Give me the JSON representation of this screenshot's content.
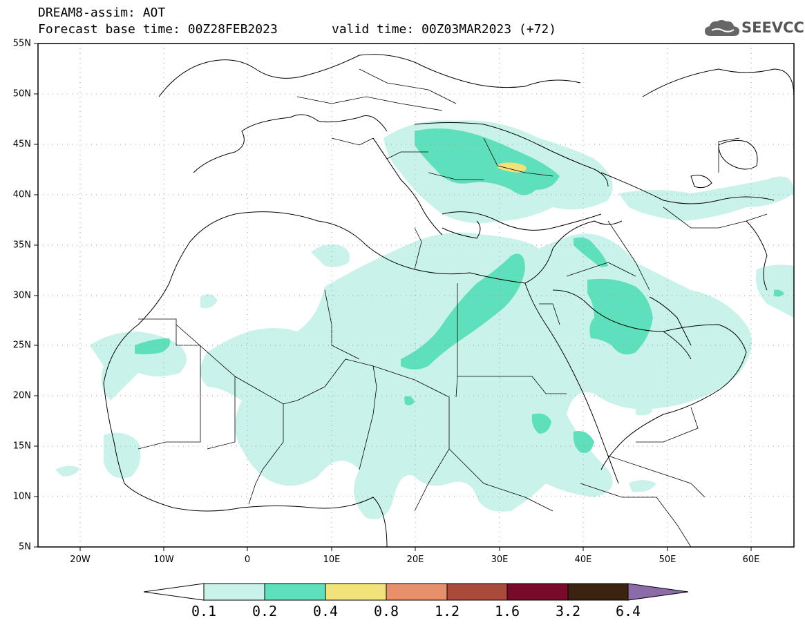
{
  "header": {
    "title": "DREAM8-assim: AOT",
    "base_time": "Forecast base time: 00Z28FEB2023",
    "valid_time": "valid time: 00Z03MAR2023 (+72)",
    "logo_text": "SEEVCCC"
  },
  "map": {
    "lon_range": [
      -25,
      65
    ],
    "lat_range": [
      5,
      55
    ],
    "lat_ticks": [
      "55N",
      "50N",
      "45N",
      "40N",
      "35N",
      "30N",
      "25N",
      "20N",
      "15N",
      "10N",
      "5N"
    ],
    "lon_ticks": [
      "20W",
      "10W",
      "0",
      "10E",
      "20E",
      "30E",
      "40E",
      "50E",
      "60E"
    ],
    "grid": "dotted"
  },
  "colorbar": {
    "levels": [
      "0.1",
      "0.2",
      "0.4",
      "0.8",
      "1.2",
      "1.6",
      "3.2",
      "6.4"
    ],
    "colors": [
      "#c9f2ea",
      "#5fe0bd",
      "#f1e27a",
      "#e8906b",
      "#a94a3a",
      "#7a0a2a",
      "#3a2410",
      "#8b6ba8"
    ]
  }
}
